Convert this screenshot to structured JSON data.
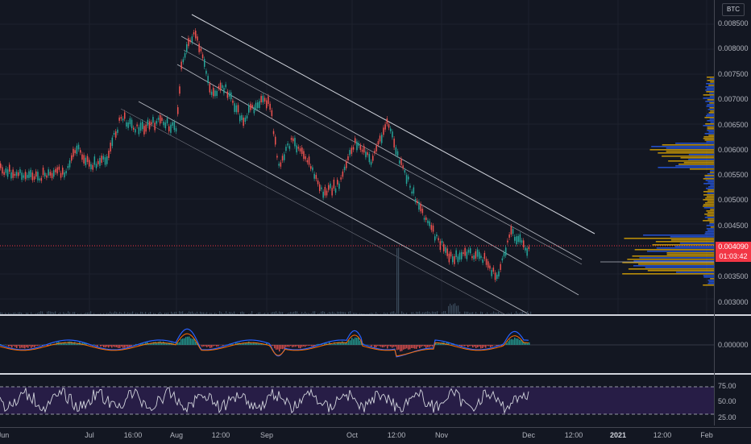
{
  "symbol_badge": "BTC",
  "last_price": {
    "value": "0.004090",
    "countdown": "01:03:42"
  },
  "price_axis": [
    "0.008500",
    "0.008000",
    "0.007500",
    "0.007000",
    "0.006500",
    "0.006000",
    "0.005500",
    "0.005000",
    "0.004500",
    "0.003500",
    "0.003000"
  ],
  "macd_axis": [
    "0.000000"
  ],
  "rsi_axis": [
    "75.00",
    "50.00",
    "25.00"
  ],
  "time_axis": [
    {
      "label": "Jun",
      "bold": false
    },
    {
      "label": "Jul",
      "bold": false
    },
    {
      "label": "16:00",
      "bold": false
    },
    {
      "label": "Aug",
      "bold": false
    },
    {
      "label": "12:00",
      "bold": false
    },
    {
      "label": "Sep",
      "bold": false
    },
    {
      "label": "Oct",
      "bold": false
    },
    {
      "label": "12:00",
      "bold": false
    },
    {
      "label": "Nov",
      "bold": false
    },
    {
      "label": "Dec",
      "bold": false
    },
    {
      "label": "12:00",
      "bold": false
    },
    {
      "label": "2021",
      "bold": true
    },
    {
      "label": "12:00",
      "bold": false
    },
    {
      "label": "Feb",
      "bold": false
    }
  ],
  "colors": {
    "up": "#26a69a",
    "down": "#ef5350",
    "background": "#131722",
    "rsi_band": "#2a1e4a",
    "macd_line": "#2962ff",
    "signal_line": "#ff6d00",
    "volume_profile_up": "#2962ff",
    "volume_profile_down": "#f0b400"
  }
}
